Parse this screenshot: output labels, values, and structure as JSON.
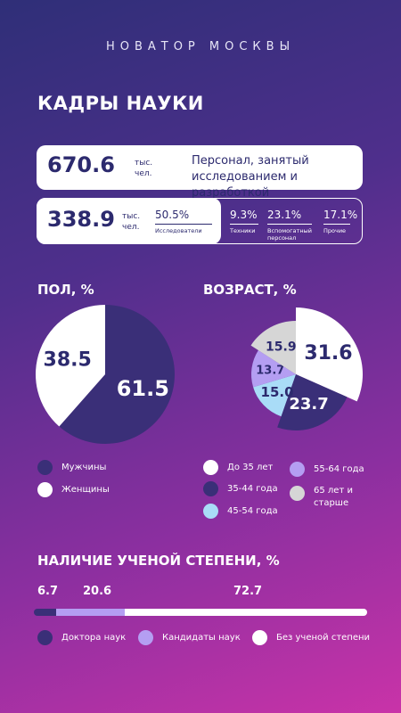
{
  "brand": "НОВАТОР МОСКВЫ",
  "title": "КАДРЫ НАУКИ",
  "personnel": {
    "value": "670.6",
    "unit_line1": "тыс.",
    "unit_line2": "чел.",
    "description": "Персонал, занятый исследованием и разработкой"
  },
  "researchers": {
    "value": "338.9",
    "unit_line1": "тыс.",
    "unit_line2": "чел.",
    "breakdown": [
      {
        "pct": "50.5%",
        "label": "Исследователи"
      },
      {
        "pct": "9.3%",
        "label": "Техники"
      },
      {
        "pct": "23.1%",
        "label": "Вспомогатный персонал"
      },
      {
        "pct": "17.1%",
        "label": "Прочие"
      }
    ]
  },
  "colors": {
    "navy": "#3a2f78",
    "white": "#ffffff",
    "light_purple": "#b49ef2",
    "light_blue": "#a9dcf7",
    "grey": "#d6d6d6"
  },
  "chart_data": [
    {
      "type": "pie",
      "title": "ПОЛ, %",
      "labels": [
        "Мужчины",
        "Женщины"
      ],
      "values": [
        61.5,
        38.5
      ],
      "colors": [
        "#3a2f78",
        "#ffffff"
      ]
    },
    {
      "type": "pie",
      "title": "ВОЗРАСТ, %",
      "labels": [
        "До 35 лет",
        "35-44 года",
        "45-54 года",
        "55-64 года",
        "65 лет и старше"
      ],
      "values": [
        31.6,
        23.7,
        15.0,
        13.7,
        15.9
      ],
      "colors": [
        "#ffffff",
        "#3a2f78",
        "#a9dcf7",
        "#b49ef2",
        "#d6d6d6"
      ]
    },
    {
      "type": "bar",
      "orientation": "horizontal-stacked",
      "title": "НАЛИЧИЕ УЧЕНОЙ СТЕПЕНИ, %",
      "labels": [
        "Доктора наук",
        "Кандидаты наук",
        "Без ученой степени"
      ],
      "values": [
        6.7,
        20.6,
        72.7
      ],
      "colors": [
        "#3a2f78",
        "#b49ef2",
        "#ffffff"
      ]
    }
  ]
}
